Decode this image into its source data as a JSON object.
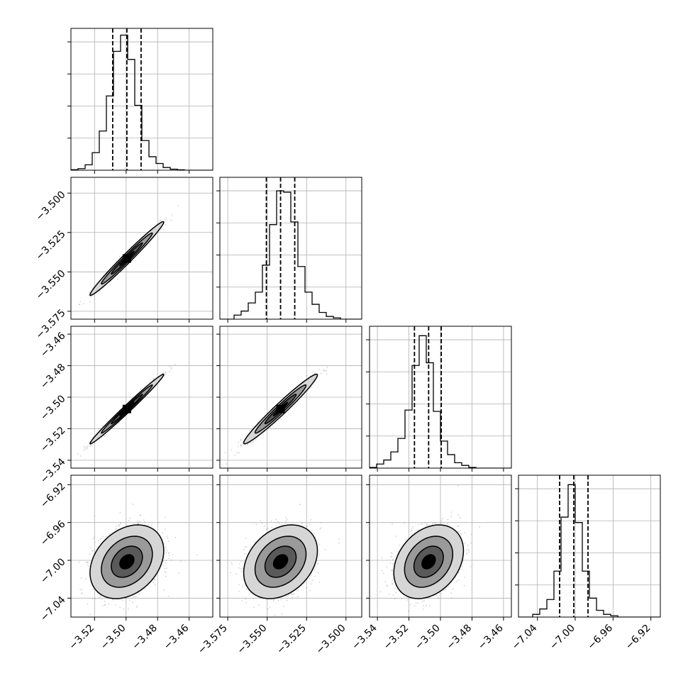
{
  "chart_data": {
    "type": "corner",
    "n_params": 4,
    "grid": true,
    "colors": {
      "line": "#000000",
      "grid": "#b0b0b0",
      "samples": "#808080",
      "fill_levels": [
        "#ffffff",
        "#d6d6d6",
        "#9a9a9a",
        "#5a5a5a",
        "#000000"
      ]
    },
    "parameters": [
      {
        "range": [
          -3.535,
          -3.445
        ],
        "ticks": [
          -3.52,
          -3.5,
          -3.48,
          -3.46
        ],
        "tick_labels": [
          "−3.52",
          "−3.50",
          "−3.48",
          "−3.46"
        ],
        "quantiles": [
          -3.5085,
          -3.4995,
          -3.4905
        ],
        "histogram": {
          "edges_range": [
            -3.535,
            -3.445
          ],
          "counts": [
            0.004,
            0.012,
            0.04,
            0.13,
            0.29,
            0.55,
            0.88,
            1.0,
            0.82,
            0.48,
            0.22,
            0.1,
            0.05,
            0.02,
            0.008,
            0.003,
            0.0,
            0.0,
            0.0,
            0.0
          ]
        }
      },
      {
        "range": [
          -3.58,
          -3.49
        ],
        "ticks": [
          -3.575,
          -3.55,
          -3.525,
          -3.5
        ],
        "tick_labels": [
          "−3.575",
          "−3.550",
          "−3.525",
          "−3.500"
        ],
        "quantiles": [
          -3.5505,
          -3.5415,
          -3.5325
        ],
        "histogram": {
          "edges_range": [
            -3.58,
            -3.49
          ],
          "counts": [
            0.0,
            0.0,
            0.03,
            0.06,
            0.12,
            0.2,
            0.4,
            0.7,
            0.95,
            0.94,
            0.72,
            0.39,
            0.2,
            0.11,
            0.05,
            0.02,
            0.01,
            0.0,
            0.0,
            0.0
          ]
        }
      },
      {
        "range": [
          -3.545,
          -3.455
        ],
        "ticks": [
          -3.54,
          -3.52,
          -3.5,
          -3.48,
          -3.46
        ],
        "tick_labels": [
          "−3.54",
          "−3.52",
          "−3.50",
          "−3.48",
          "−3.46"
        ],
        "quantiles": [
          -3.5165,
          -3.5075,
          -3.4995
        ],
        "histogram": {
          "edges_range": [
            -3.545,
            -3.455
          ],
          "counts": [
            0.005,
            0.03,
            0.06,
            0.12,
            0.22,
            0.43,
            0.76,
            0.98,
            0.78,
            0.42,
            0.2,
            0.1,
            0.04,
            0.02,
            0.005,
            0.0,
            0.0,
            0.0,
            0.0,
            0.0
          ]
        }
      },
      {
        "range": [
          -7.06,
          -6.91
        ],
        "ticks": [
          -7.04,
          -7.0,
          -6.96,
          -6.92
        ],
        "tick_labels": [
          "−7.04",
          "−7.00",
          "−6.96",
          "−6.92"
        ],
        "quantiles": [
          -7.0165,
          -7.0015,
          -6.9865
        ],
        "histogram": {
          "edges_range": [
            -7.06,
            -6.91
          ],
          "counts": [
            0.0,
            0.0,
            0.02,
            0.06,
            0.13,
            0.34,
            0.74,
            0.98,
            0.7,
            0.34,
            0.14,
            0.05,
            0.02,
            0.01,
            0.0,
            0.0,
            0.0,
            0.0,
            0.0,
            0.0
          ]
        }
      }
    ],
    "correlations": {
      "1,0": 0.985,
      "2,0": 0.99,
      "2,1": 0.975,
      "3,0": 0.3,
      "3,1": 0.3,
      "3,2": 0.3
    }
  }
}
